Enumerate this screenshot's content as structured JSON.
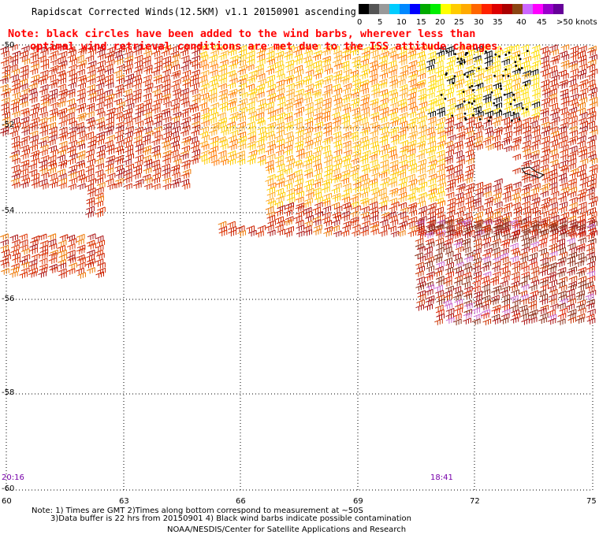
{
  "title": "Rapidscat Corrected Winds(12.5KM) v1.1 20150901 ascending",
  "note_line1": "Note: black circles have been added to the wind barbs, wherever less than",
  "note_line2": "optimal wind retrieval conditions are met due to the ISS attitude changes.",
  "legend": {
    "unit": ">50 knots",
    "labels": [
      "0",
      "5",
      "10",
      "15",
      "20",
      "25",
      "30",
      "35",
      "40",
      "45"
    ],
    "colors": [
      "#000000",
      "#555555",
      "#999999",
      "#00ccff",
      "#0088ff",
      "#0000ff",
      "#00aa00",
      "#00ee00",
      "#ffff00",
      "#ffcc00",
      "#ffaa00",
      "#ff6600",
      "#ff2200",
      "#dd0000",
      "#aa0000",
      "#8b4513",
      "#cc66ff",
      "#ff00ff",
      "#9900cc",
      "#660099"
    ]
  },
  "map": {
    "lat_labels": [
      "-50",
      "-52",
      "-54",
      "-56",
      "-58",
      "-60"
    ],
    "lon_labels": [
      "60",
      "63",
      "66",
      "69",
      "72",
      "75"
    ],
    "lon_range": [
      60,
      75
    ],
    "lat_range": [
      -60,
      -50
    ]
  },
  "times": {
    "left": "20:16",
    "right": "18:41"
  },
  "footer": {
    "line1": "Note: 1) Times are GMT 2)Times along bottom correspond to measurement at ~50S",
    "line2": "3)Data buffer is 22 hrs from 20150901 4) Black wind barbs indicate possible contamination",
    "line3": "NOAA/NESDIS/Center for Satellite Applications and Research"
  }
}
